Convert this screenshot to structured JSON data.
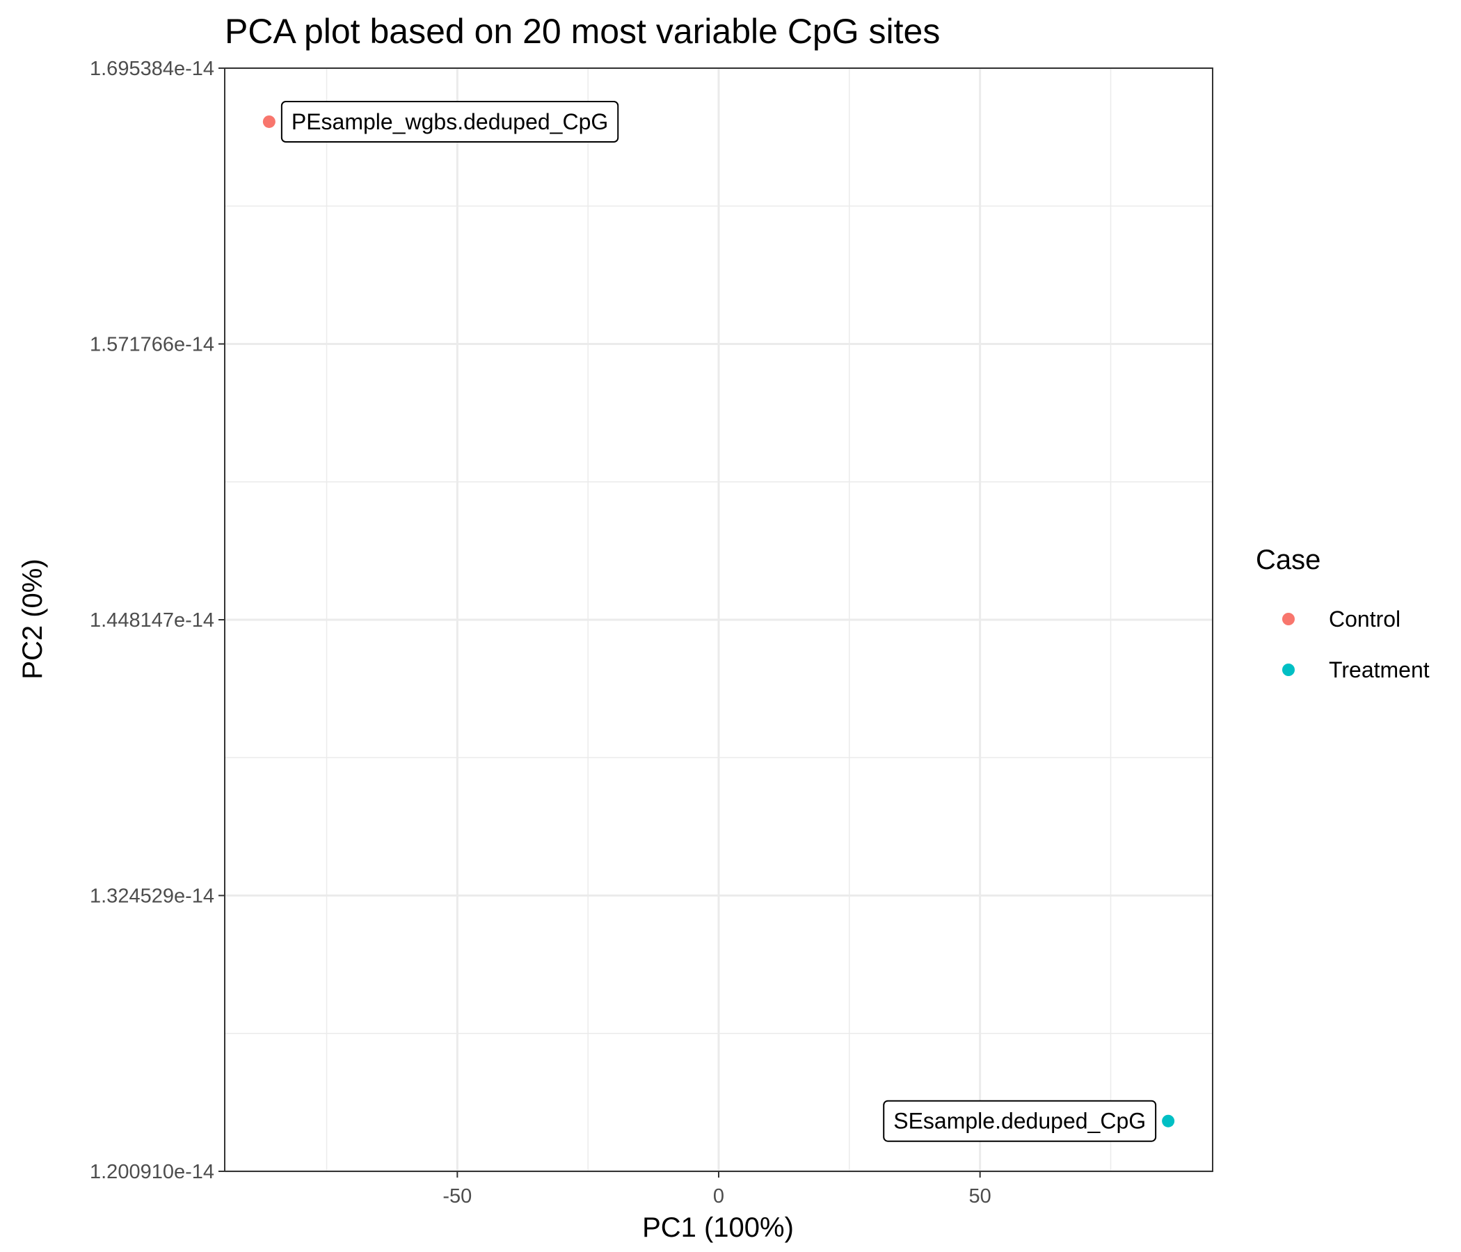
{
  "chart_data": {
    "type": "scatter",
    "title": "PCA plot based on 20 most variable CpG  sites",
    "xlabel": "PC1 (100%)",
    "ylabel": "PC2 (0%)",
    "xlim": [
      -94.5,
      94.5
    ],
    "ylim": [
      1.20091e-14,
      1.695384e-14
    ],
    "x_ticks": [
      -50,
      0,
      50
    ],
    "x_tick_labels": [
      "-50",
      "0",
      "50"
    ],
    "y_ticks": [
      1.20091e-14,
      1.324529e-14,
      1.448147e-14,
      1.571766e-14,
      1.695384e-14
    ],
    "y_tick_labels": [
      "1.200910e-14",
      "1.324529e-14",
      "1.448147e-14",
      "1.571766e-14",
      "1.695384e-14"
    ],
    "grid": true,
    "legend": {
      "title": "Case",
      "position": "right",
      "entries": [
        {
          "label": "Control",
          "color": "#F8766D"
        },
        {
          "label": "Treatment",
          "color": "#00BFC4"
        }
      ]
    },
    "points": [
      {
        "x": -86,
        "y": 1.67138e-14,
        "group": "Control",
        "label": "PEsample_wgbs.deduped_CpG",
        "color": "#F8766D"
      },
      {
        "x": 86,
        "y": 1.22345e-14,
        "group": "Treatment",
        "label": "SEsample.deduped_CpG",
        "color": "#00BFC4"
      }
    ]
  }
}
